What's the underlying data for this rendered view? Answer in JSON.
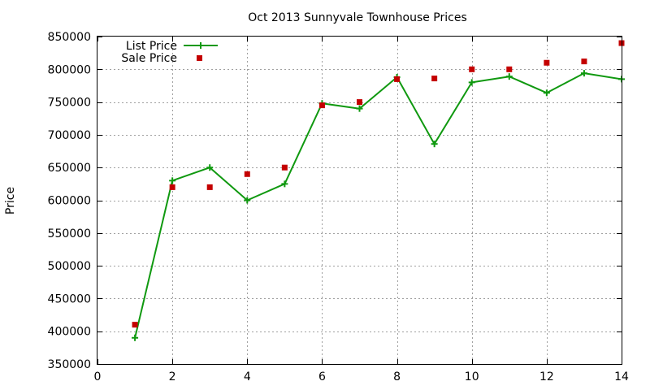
{
  "chart_data": {
    "type": "line",
    "title": "Oct 2013 Sunnyvale Townhouse Prices",
    "xlabel": "",
    "ylabel": "Price",
    "xlim": [
      0,
      14
    ],
    "ylim": [
      350000,
      850000
    ],
    "x_ticks": [
      0,
      2,
      4,
      6,
      8,
      10,
      12,
      14
    ],
    "y_ticks": [
      350000,
      400000,
      450000,
      500000,
      550000,
      600000,
      650000,
      700000,
      750000,
      800000,
      850000
    ],
    "grid": true,
    "legend_position": "top-left",
    "series": [
      {
        "name": "List Price",
        "style": "line+cross",
        "color": "#109910",
        "x": [
          1,
          2,
          3,
          4,
          5,
          6,
          7,
          8,
          9,
          10,
          11,
          12,
          13,
          14
        ],
        "values": [
          390000,
          630000,
          650000,
          600000,
          625000,
          748000,
          740000,
          788000,
          686000,
          780000,
          789000,
          764000,
          794000,
          785000
        ]
      },
      {
        "name": "Sale Price",
        "style": "points-square",
        "color": "#c40000",
        "x": [
          1,
          2,
          3,
          4,
          5,
          6,
          7,
          8,
          9,
          10,
          11,
          12,
          13,
          14
        ],
        "values": [
          410000,
          620000,
          620000,
          640000,
          650000,
          745000,
          750000,
          785000,
          786000,
          800000,
          800000,
          810000,
          812000,
          840000
        ]
      }
    ]
  }
}
